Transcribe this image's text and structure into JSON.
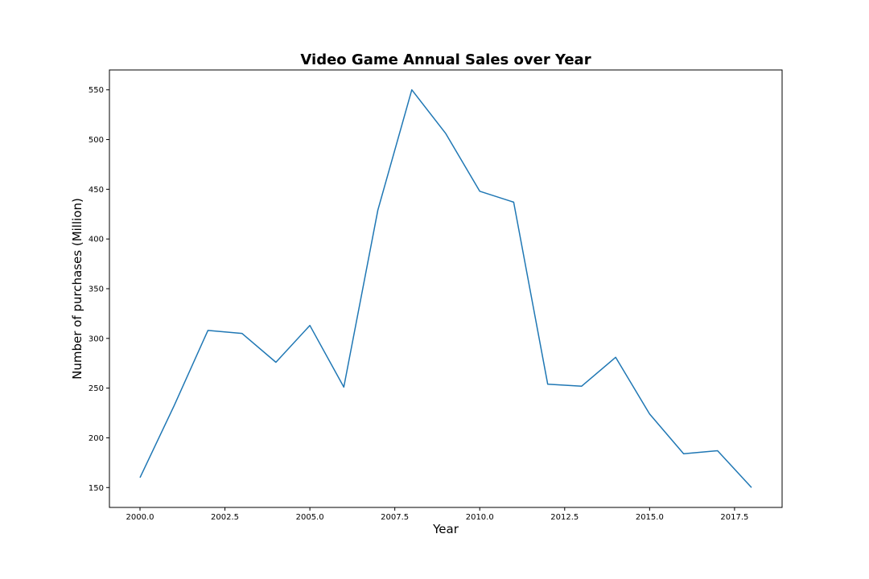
{
  "chart_data": {
    "type": "line",
    "title": "Video Game Annual Sales over Year",
    "xlabel": "Year",
    "ylabel": "Number of purchases (Million)",
    "xlim": [
      1999.1,
      2018.9
    ],
    "ylim": [
      130,
      570
    ],
    "xticks": [
      2000.0,
      2002.5,
      2005.0,
      2007.5,
      2010.0,
      2012.5,
      2015.0,
      2017.5
    ],
    "xtick_labels": [
      "2000.0",
      "2002.5",
      "2005.0",
      "2007.5",
      "2010.0",
      "2012.5",
      "2015.0",
      "2017.5"
    ],
    "yticks": [
      150,
      200,
      250,
      300,
      350,
      400,
      450,
      500,
      550
    ],
    "ytick_labels": [
      "150",
      "200",
      "250",
      "300",
      "350",
      "400",
      "450",
      "500",
      "550"
    ],
    "grid": false,
    "series": [
      {
        "color": "#1f77b4",
        "x": [
          2000,
          2001,
          2002,
          2003,
          2004,
          2005,
          2006,
          2007,
          2008,
          2009,
          2010,
          2011,
          2012,
          2013,
          2014,
          2015,
          2016,
          2017,
          2018
        ],
        "y": [
          160,
          232,
          308,
          305,
          276,
          313,
          251,
          429,
          550,
          506,
          448,
          437,
          254,
          252,
          281,
          224,
          184,
          187,
          150
        ]
      }
    ]
  }
}
